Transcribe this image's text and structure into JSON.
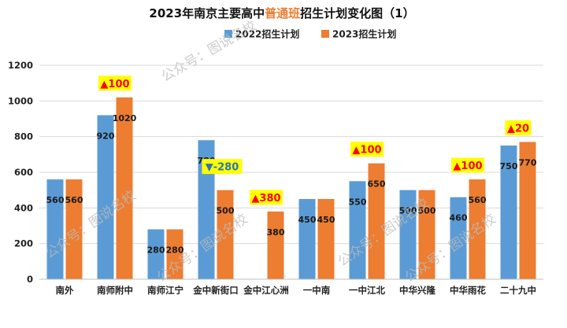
{
  "chart_data": {
    "type": "bar",
    "title": {
      "prefix": "2023年南京主要高中",
      "highlight": "普通班",
      "suffix": "招生计划变化图（1）"
    },
    "categories": [
      "南外",
      "南师附中",
      "南师江宁",
      "金中新街口",
      "金中江心洲",
      "一中南",
      "一中江北",
      "中华兴隆",
      "中华雨花",
      "二十九中"
    ],
    "series": [
      {
        "name": "2022招生计划",
        "values": [
          560,
          920,
          280,
          780,
          null,
          450,
          550,
          500,
          460,
          750
        ]
      },
      {
        "name": "2023招生计划",
        "values": [
          560,
          1020,
          280,
          500,
          380,
          450,
          650,
          500,
          560,
          770
        ]
      }
    ],
    "value_labels": {
      "2022招生计划": [
        "560",
        "920",
        "280",
        "780",
        "",
        "450",
        "550",
        "500",
        "460",
        "750"
      ],
      "2023招生计划": [
        "560",
        "1020",
        "280",
        "500",
        "380",
        "450",
        "650",
        "500",
        "560",
        "770"
      ]
    },
    "change_annotations": [
      {
        "category_index": 1,
        "text": "▲100",
        "direction": "up"
      },
      {
        "category_index": 3,
        "text": "▼-280",
        "direction": "down"
      },
      {
        "category_index": 4,
        "text": "▲380",
        "direction": "up"
      },
      {
        "category_index": 6,
        "text": "▲100",
        "direction": "up"
      },
      {
        "category_index": 8,
        "text": "▲100",
        "direction": "up"
      },
      {
        "category_index": 9,
        "text": "▲20",
        "direction": "up"
      }
    ],
    "y_ticks": [
      "0",
      "200",
      "400",
      "600",
      "800",
      "1000",
      "1200"
    ],
    "ylim": [
      0,
      1200
    ],
    "grid": true,
    "legend_position": "top",
    "colors": {
      "2022招生计划": "#5B9BD5",
      "2023招生计划": "#ED7D31",
      "title_highlight": "#ED7D31",
      "annotation_bg": "#FFFF00",
      "annotation_up": "#FF0000",
      "annotation_down": "#2E75B6",
      "grid": "#D9D9D9"
    },
    "watermark": "公众号：图说名校"
  }
}
